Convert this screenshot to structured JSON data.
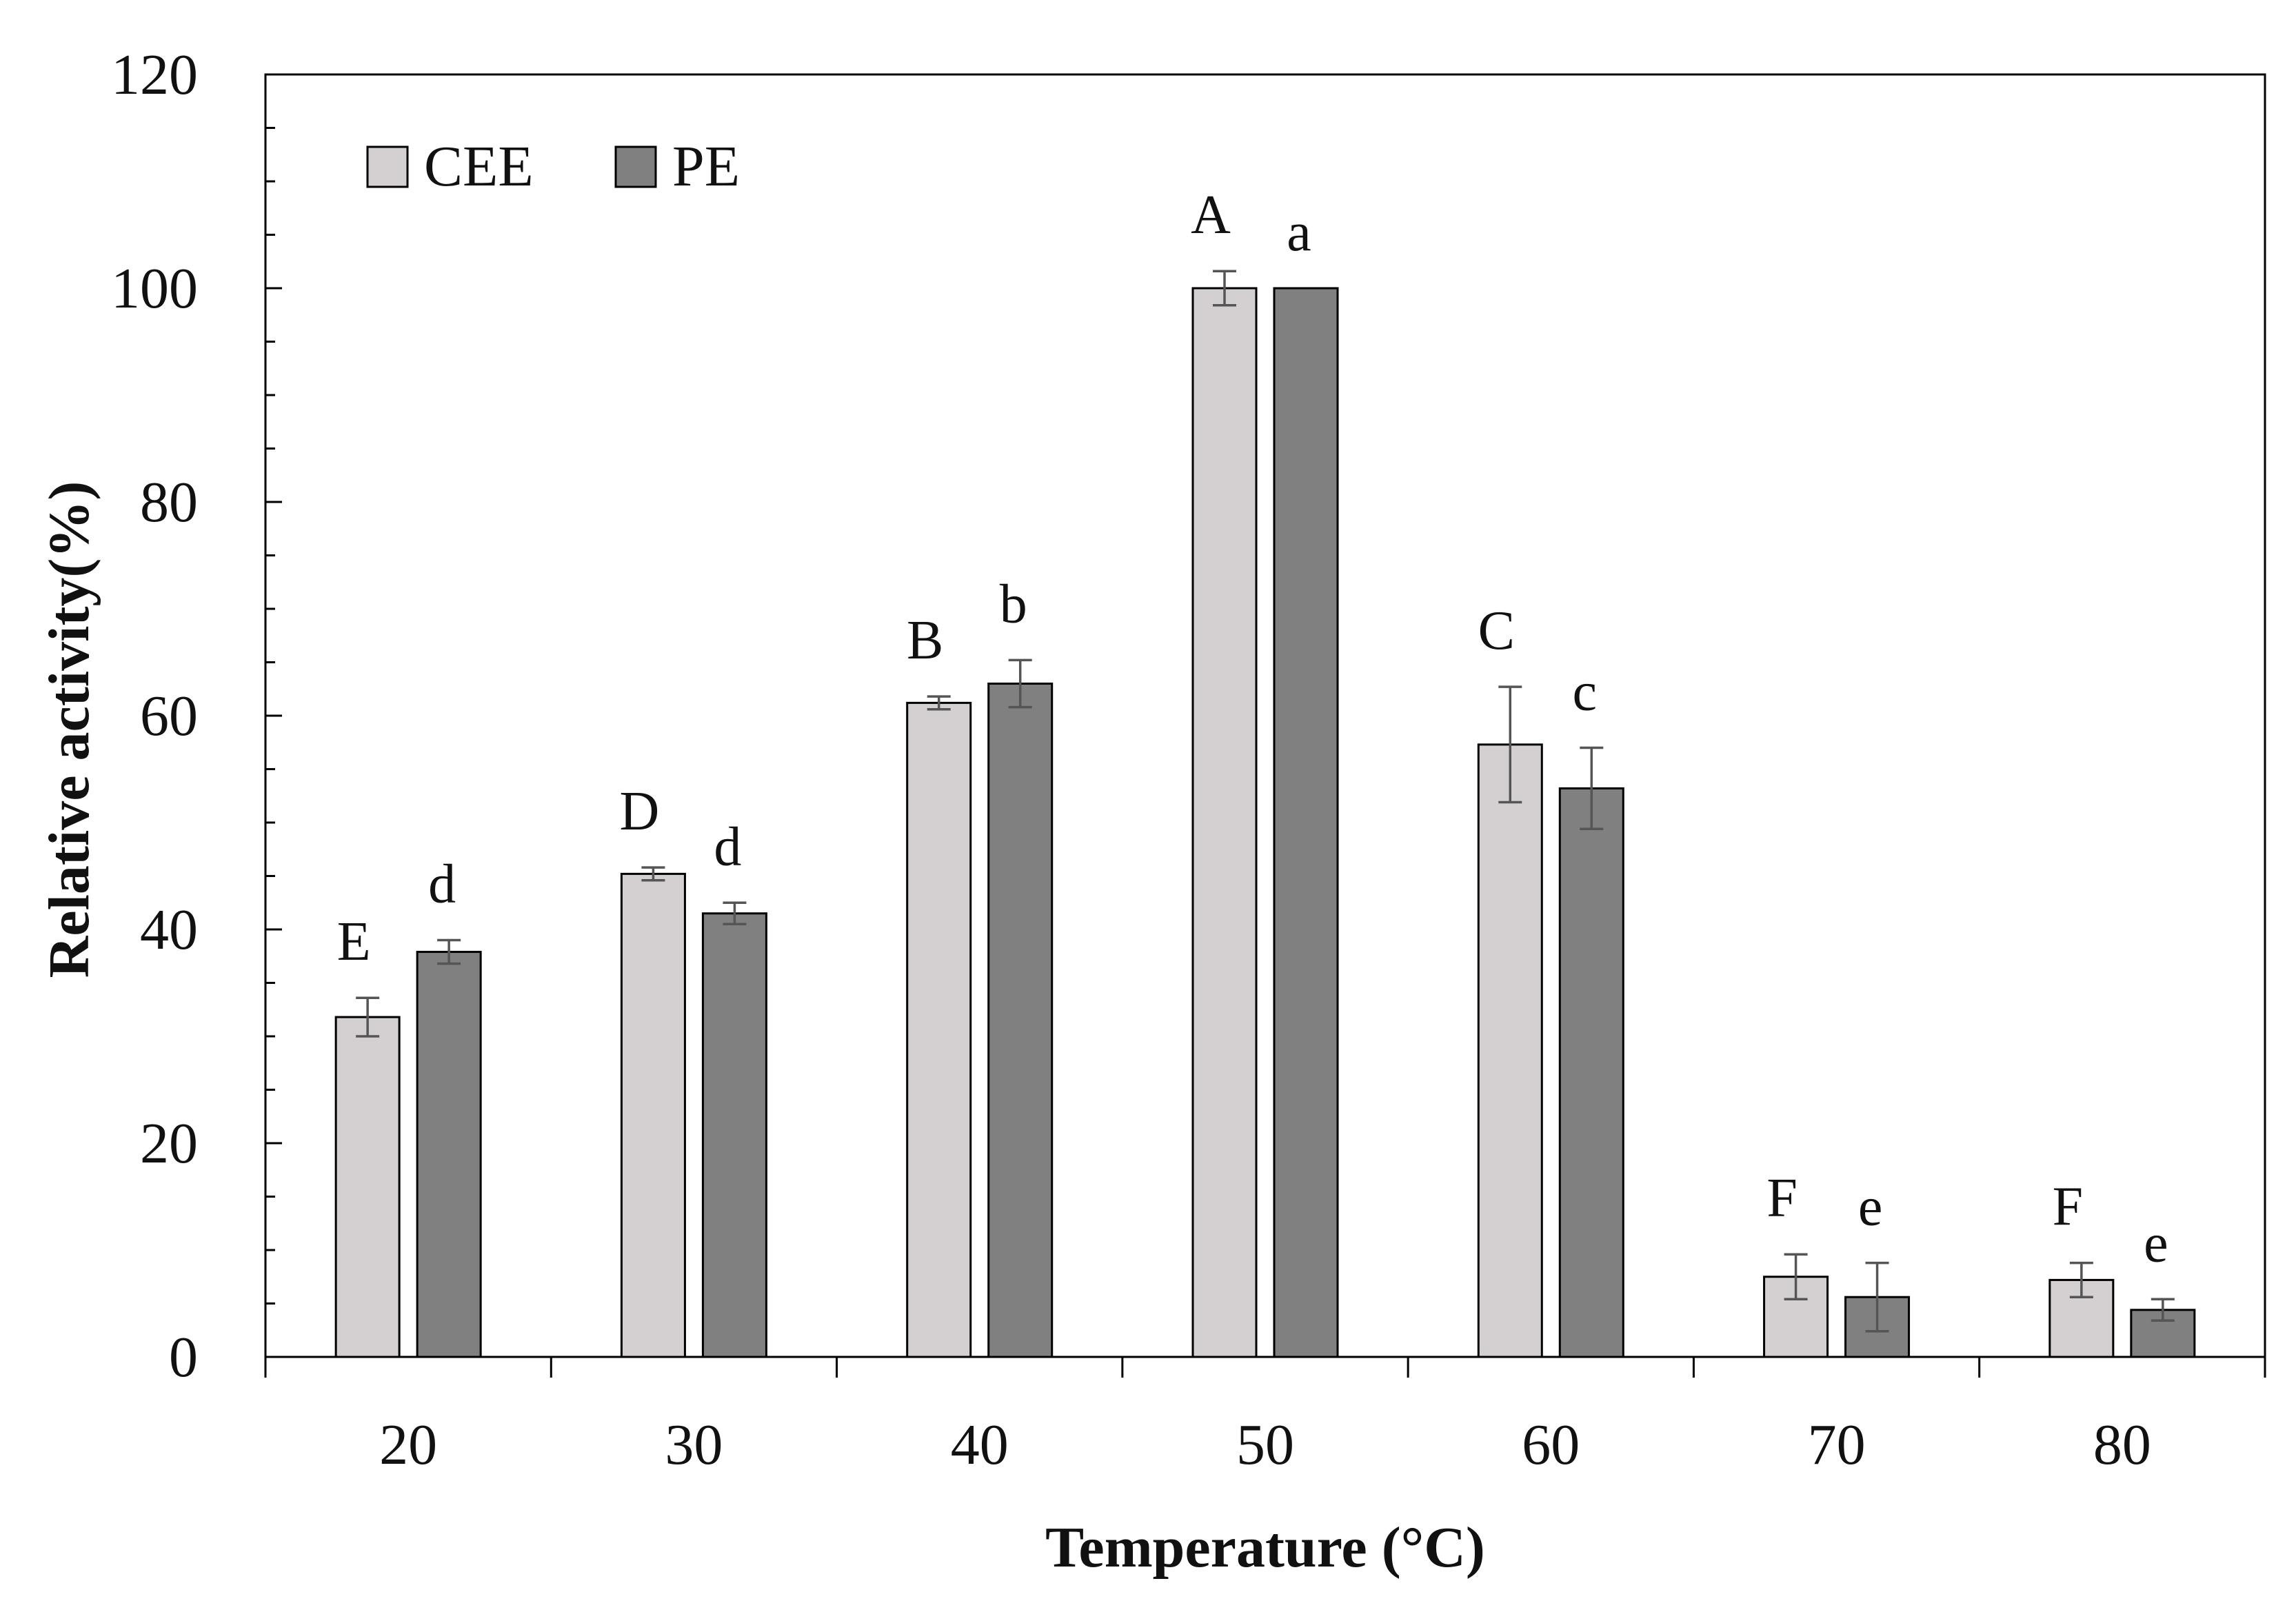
{
  "chart_data": {
    "type": "bar",
    "title": "",
    "xlabel": "Temperature (°C)",
    "ylabel": "Relative activity(%)",
    "ylim": [
      0,
      120
    ],
    "yticks": [
      0,
      20,
      40,
      60,
      80,
      100,
      120
    ],
    "categories": [
      "20",
      "30",
      "40",
      "50",
      "60",
      "70",
      "80"
    ],
    "series": [
      {
        "name": "CEE",
        "color": "#d4d0d1",
        "values": [
          31.8,
          45.2,
          61.2,
          100.0,
          57.3,
          7.5,
          7.2
        ],
        "errors": [
          1.8,
          0.6,
          0.6,
          1.6,
          5.4,
          2.1,
          1.6
        ],
        "letters": [
          "E",
          "D",
          "B",
          "A",
          "C",
          "F",
          "F"
        ]
      },
      {
        "name": "PE",
        "color": "#808080",
        "values": [
          37.9,
          41.5,
          63.0,
          100.0,
          53.2,
          5.6,
          4.4
        ],
        "errors": [
          1.1,
          1.0,
          2.2,
          0.0,
          3.8,
          3.2,
          1.0
        ],
        "letters": [
          "d",
          "d",
          "b",
          "a",
          "c",
          "e",
          "e"
        ]
      }
    ],
    "legend_position": "top-left",
    "grid": false
  }
}
